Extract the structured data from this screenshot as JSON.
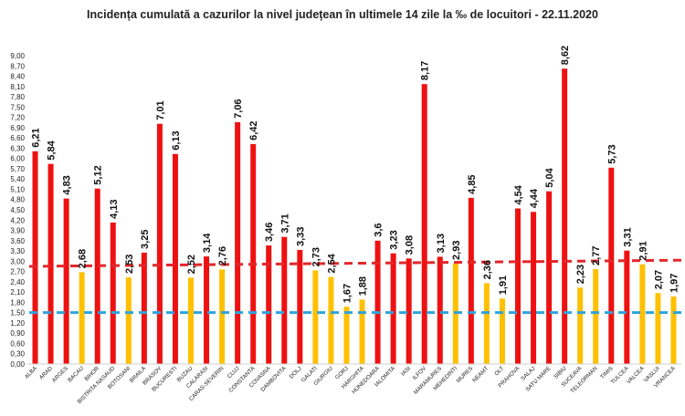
{
  "chart_data": {
    "type": "bar",
    "title": "Incidența cumulată a cazurilor la nivel județean în ultimele 14 zile la ‰ de locuitori - 22.11.2020",
    "xlabel": "",
    "ylabel": "",
    "ylim": [
      0,
      9.0
    ],
    "ytick_step": 0.3,
    "grid": false,
    "legend": "none",
    "colors": {
      "above_threshold": "#ee1111",
      "below_threshold": "#ffc000",
      "red_threshold_line": "#e3262b",
      "blue_threshold_line": "#2ea3dc"
    },
    "thresholds": [
      {
        "name": "red",
        "value": 3.0
      },
      {
        "name": "blue",
        "value": 1.5
      }
    ],
    "categories": [
      "ALBA",
      "ARAD",
      "ARGES",
      "BACAU",
      "BIHOR",
      "BISTRITA NASAUD",
      "BOTOSANI",
      "BRAILA",
      "BRASOV",
      "BUCURESTI",
      "BUZAU",
      "CALARASI",
      "CARAS-SEVERIN",
      "CLUJ",
      "CONSTANTA",
      "COVASNA",
      "DAMBOVITA",
      "DOLJ",
      "GALATI",
      "GIURGIU",
      "GORJ",
      "HARGHITA",
      "HUNEDOARA",
      "IALOMITA",
      "IASI",
      "ILFOV",
      "MARAMURES",
      "MEHEDINTI",
      "MURES",
      "NEAMT",
      "OLT",
      "PRAHOVA",
      "SALAJ",
      "SATU MARE",
      "SIBIU",
      "SUCEAVA",
      "TELEORMAN",
      "TIMIS",
      "TULCEA",
      "VALCEA",
      "VASLUI",
      "VRANCEA"
    ],
    "values": [
      6.21,
      5.84,
      4.83,
      2.68,
      5.12,
      4.13,
      2.53,
      3.25,
      7.01,
      6.13,
      2.52,
      3.14,
      2.76,
      7.06,
      6.42,
      3.46,
      3.71,
      3.33,
      2.73,
      2.54,
      1.67,
      1.88,
      3.6,
      3.23,
      3.08,
      8.17,
      3.13,
      2.93,
      4.85,
      2.36,
      1.91,
      4.54,
      4.44,
      5.04,
      8.62,
      2.23,
      2.77,
      5.73,
      3.31,
      2.91,
      2.07,
      1.97
    ],
    "value_labels": [
      "6,21",
      "5,84",
      "4,83",
      "2,68",
      "5,12",
      "4,13",
      "2,53",
      "3,25",
      "7,01",
      "6,13",
      "2,52",
      "3,14",
      "2,76",
      "7,06",
      "6,42",
      "3,46",
      "3,71",
      "3,33",
      "2,73",
      "2,54",
      "1,67",
      "1,88",
      "3,6",
      "3,23",
      "3,08",
      "8,17",
      "3,13",
      "2,93",
      "4,85",
      "2,36",
      "1,91",
      "4,54",
      "4,44",
      "5,04",
      "8,62",
      "2,23",
      "2,77",
      "5,73",
      "3,31",
      "2,91",
      "2,07",
      "1,97"
    ]
  }
}
